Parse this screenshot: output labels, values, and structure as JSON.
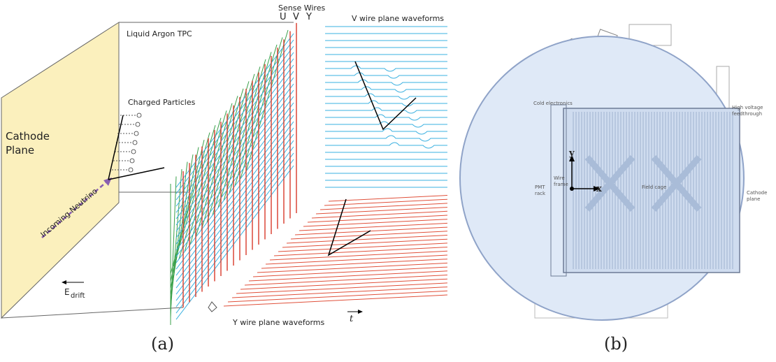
{
  "panel_a": {
    "sense_wires": "Sense Wires",
    "plane_labels": [
      "U",
      "V",
      "Y"
    ],
    "v_waveforms_title": "V wire plane waveforms",
    "tpc_label": "Liquid Argon TPC",
    "charged_particles": "Charged Particles",
    "cathode_plane": [
      "Cathode",
      "Plane"
    ],
    "incoming_neutrino": "Incoming Neutrino",
    "e_drift": {
      "symbol": "E",
      "subscript": "drift"
    },
    "y_waveforms_title": "Y wire plane waveforms",
    "time_axis": "t",
    "caption": "(a)"
  },
  "panel_b": {
    "cold_electronics": "Cold electronics",
    "high_voltage": [
      "High voltage",
      "feedthrough"
    ],
    "axis_y": "y",
    "axis_x": "x",
    "pmt_rack": [
      "PMT",
      "rack"
    ],
    "wire_frame": [
      "Wire",
      "frame"
    ],
    "field_cage": "Field cage",
    "cathode_plane": [
      "Cathode",
      "plane"
    ],
    "caption": "(b)"
  }
}
